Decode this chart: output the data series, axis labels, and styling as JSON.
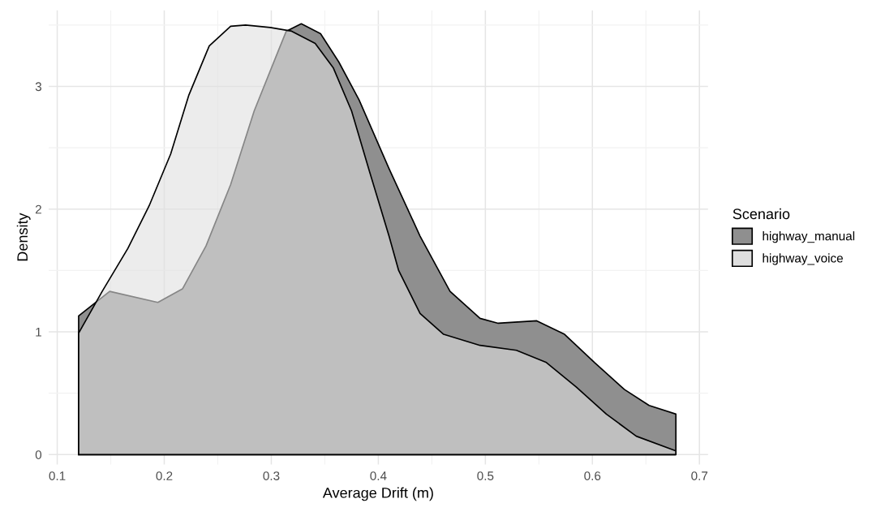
{
  "chart_data": {
    "type": "area",
    "xlabel": "Average Drift (m)",
    "ylabel": "Density",
    "legend_title": "Scenario",
    "legend": "right",
    "grid": true,
    "xlim": [
      0.092,
      0.708
    ],
    "ylim": [
      -0.08,
      3.62
    ],
    "xticks": [
      0.1,
      0.2,
      0.3,
      0.4,
      0.5,
      0.6,
      0.7
    ],
    "yticks": [
      0,
      1,
      2,
      3
    ],
    "series": [
      {
        "name": "highway_manual",
        "color": "#8f8f8f",
        "x": [
          0.12,
          0.149,
          0.194,
          0.217,
          0.239,
          0.262,
          0.284,
          0.307,
          0.314,
          0.328,
          0.346,
          0.363,
          0.382,
          0.41,
          0.439,
          0.467,
          0.495,
          0.512,
          0.548,
          0.574,
          0.602,
          0.63,
          0.653,
          0.678
        ],
        "values": [
          1.13,
          1.33,
          1.24,
          1.35,
          1.7,
          2.2,
          2.8,
          3.3,
          3.45,
          3.51,
          3.43,
          3.2,
          2.89,
          2.33,
          1.78,
          1.33,
          1.11,
          1.07,
          1.09,
          0.98,
          0.75,
          0.53,
          0.4,
          0.33
        ]
      },
      {
        "name": "highway_voice",
        "color": "#dfdfdf",
        "x": [
          0.12,
          0.142,
          0.166,
          0.186,
          0.206,
          0.223,
          0.242,
          0.262,
          0.276,
          0.299,
          0.319,
          0.341,
          0.358,
          0.375,
          0.392,
          0.41,
          0.419,
          0.439,
          0.461,
          0.495,
          0.529,
          0.557,
          0.585,
          0.613,
          0.641,
          0.678
        ],
        "values": [
          0.99,
          1.33,
          1.68,
          2.03,
          2.45,
          2.93,
          3.33,
          3.49,
          3.5,
          3.48,
          3.45,
          3.35,
          3.15,
          2.8,
          2.3,
          1.78,
          1.5,
          1.15,
          0.98,
          0.89,
          0.85,
          0.75,
          0.55,
          0.33,
          0.15,
          0.03
        ]
      }
    ]
  }
}
